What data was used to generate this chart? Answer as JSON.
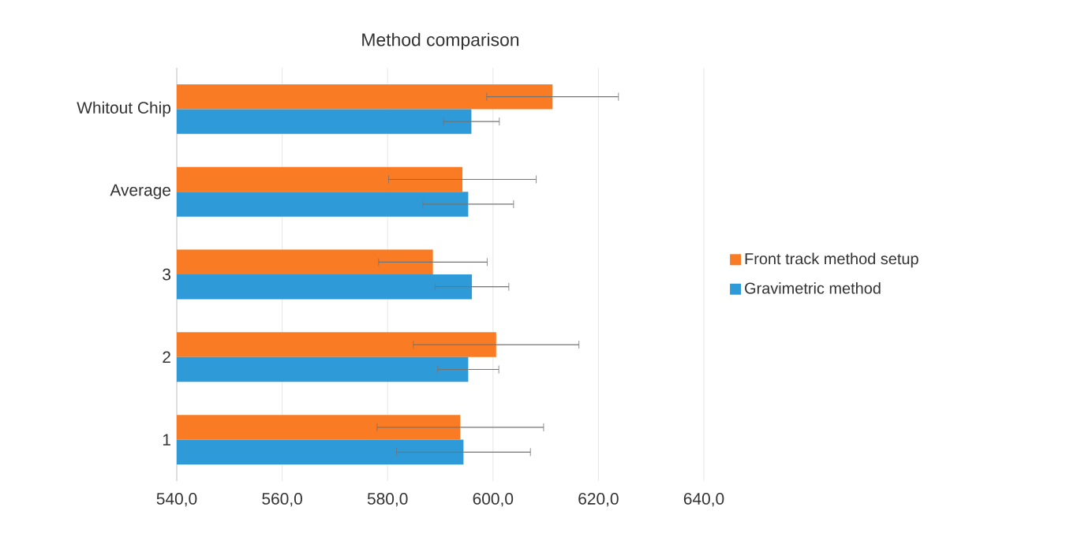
{
  "chart_data": {
    "type": "bar",
    "orientation": "horizontal",
    "title": "Method comparison",
    "categories": [
      "Whitout Chip",
      "Average",
      "3",
      "2",
      "1"
    ],
    "series": [
      {
        "name": "Front track method setup",
        "color": "#f97c25",
        "values": [
          611.3,
          594.2,
          588.6,
          600.6,
          593.8
        ],
        "errors": [
          12.5,
          14.0,
          10.3,
          15.7,
          15.8
        ]
      },
      {
        "name": "Gravimetric method",
        "color": "#2e9bd8",
        "values": [
          595.9,
          595.3,
          596.0,
          595.3,
          594.4
        ],
        "errors": [
          5.3,
          8.6,
          7.0,
          5.8,
          12.7
        ]
      }
    ],
    "xlim": [
      540,
      640
    ],
    "xticks": [
      {
        "value": 540,
        "label": "540,0"
      },
      {
        "value": 560,
        "label": "560,0"
      },
      {
        "value": 580,
        "label": "580,0"
      },
      {
        "value": 600,
        "label": "600,0"
      },
      {
        "value": 620,
        "label": "620,0"
      },
      {
        "value": 640,
        "label": "640,0"
      }
    ],
    "grid": "x",
    "legend": "right"
  }
}
